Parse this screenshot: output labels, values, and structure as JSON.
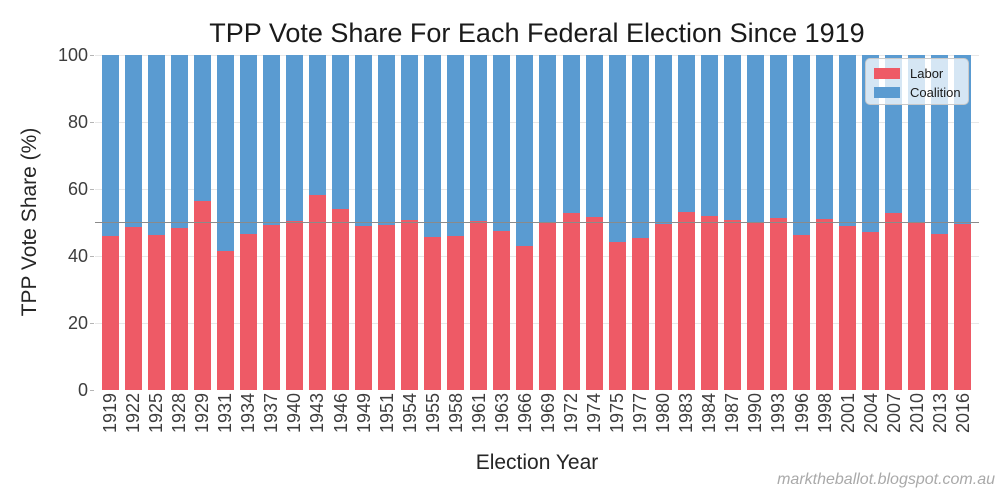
{
  "chart_data": {
    "type": "bar",
    "stacked": true,
    "title": "TPP Vote Share For Each Federal Election Since 1919",
    "xlabel": "Election Year",
    "ylabel": "TPP Vote Share (%)",
    "ylim": [
      0,
      100
    ],
    "yticks": [
      0,
      20,
      40,
      60,
      80,
      100
    ],
    "reference_line_y": 50,
    "grid": "horizontal",
    "legend_position": "upper-right",
    "categories": [
      "1919",
      "1922",
      "1925",
      "1928",
      "1929",
      "1931",
      "1934",
      "1937",
      "1940",
      "1943",
      "1946",
      "1949",
      "1951",
      "1954",
      "1955",
      "1958",
      "1961",
      "1963",
      "1966",
      "1969",
      "1972",
      "1974",
      "1975",
      "1977",
      "1980",
      "1983",
      "1984",
      "1987",
      "1990",
      "1993",
      "1996",
      "1998",
      "2001",
      "2004",
      "2007",
      "2010",
      "2013",
      "2016"
    ],
    "series": [
      {
        "name": "Labor",
        "color": "#ee5a66",
        "values": [
          45.9,
          48.8,
          46.2,
          48.4,
          56.5,
          41.5,
          46.5,
          49.3,
          50.3,
          58.2,
          54.1,
          49.0,
          49.3,
          50.7,
          45.8,
          45.9,
          50.5,
          47.4,
          43.1,
          50.2,
          52.7,
          51.7,
          44.3,
          45.4,
          49.6,
          53.2,
          51.8,
          50.8,
          49.9,
          51.4,
          46.4,
          51.0,
          49.0,
          47.3,
          52.7,
          50.1,
          46.5,
          49.6
        ]
      },
      {
        "name": "Coalition",
        "color": "#5a9bd1",
        "values": [
          54.1,
          51.2,
          53.8,
          51.6,
          43.5,
          58.5,
          53.5,
          50.7,
          49.7,
          41.8,
          45.9,
          51.0,
          50.7,
          49.3,
          54.2,
          54.1,
          49.5,
          52.6,
          56.9,
          49.8,
          47.3,
          48.3,
          55.7,
          54.6,
          50.4,
          46.8,
          48.2,
          49.2,
          50.1,
          48.6,
          53.6,
          49.0,
          51.0,
          52.7,
          47.3,
          49.9,
          53.5,
          50.4
        ]
      }
    ],
    "colors": {
      "gridline": "#e7e7e7",
      "reference_line": "#8a8a8a"
    },
    "watermark": "marktheballot.blogspot.com.au"
  }
}
